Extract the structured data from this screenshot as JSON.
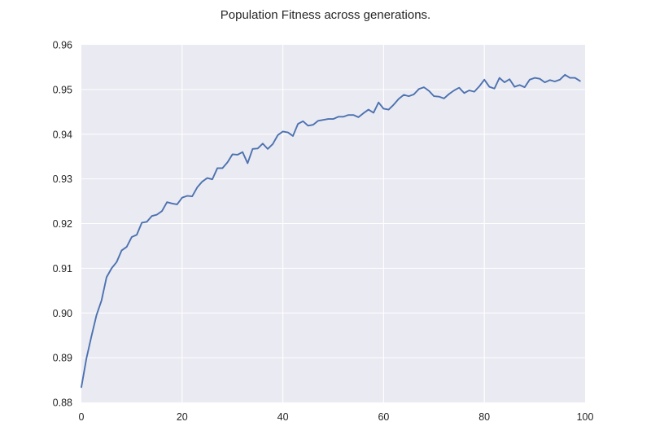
{
  "chart_data": {
    "type": "line",
    "title": "Population Fitness across generations.",
    "xlabel": "",
    "ylabel": "",
    "xlim": [
      0,
      100
    ],
    "ylim": [
      0.88,
      0.96
    ],
    "xticks": [
      0,
      20,
      40,
      60,
      80,
      100
    ],
    "yticks": [
      0.88,
      0.89,
      0.9,
      0.91,
      0.92,
      0.93,
      0.94,
      0.95,
      0.96
    ],
    "xtick_labels": [
      "0",
      "20",
      "40",
      "60",
      "80",
      "100"
    ],
    "ytick_labels": [
      "0.88",
      "0.89",
      "0.90",
      "0.91",
      "0.92",
      "0.93",
      "0.94",
      "0.95",
      "0.96"
    ],
    "grid": true,
    "legend": "none",
    "colors": {
      "background": "#eaeaf2",
      "grid": "#ffffff",
      "series": "#4c72b0",
      "text": "#262626"
    },
    "series": [
      {
        "color": "#4c72b0",
        "x": [
          0,
          1,
          2,
          3,
          4,
          5,
          6,
          7,
          8,
          9,
          10,
          11,
          12,
          13,
          14,
          15,
          16,
          17,
          18,
          19,
          20,
          21,
          22,
          23,
          24,
          25,
          26,
          27,
          28,
          29,
          30,
          31,
          32,
          33,
          34,
          35,
          36,
          37,
          38,
          39,
          40,
          41,
          42,
          43,
          44,
          45,
          46,
          47,
          48,
          49,
          50,
          51,
          52,
          53,
          54,
          55,
          56,
          57,
          58,
          59,
          60,
          61,
          62,
          63,
          64,
          65,
          66,
          67,
          68,
          69,
          70,
          71,
          72,
          73,
          74,
          75,
          76,
          77,
          78,
          79,
          80,
          81,
          82,
          83,
          84,
          85,
          86,
          87,
          88,
          89,
          90,
          91,
          92,
          93,
          94,
          95,
          96,
          97,
          98,
          99
        ],
        "values": [
          0.8834,
          0.8898,
          0.8948,
          0.8995,
          0.9028,
          0.908,
          0.91,
          0.9114,
          0.914,
          0.9148,
          0.917,
          0.9175,
          0.9202,
          0.9204,
          0.9217,
          0.922,
          0.9228,
          0.9248,
          0.9245,
          0.9243,
          0.9258,
          0.9262,
          0.9261,
          0.9281,
          0.9294,
          0.9302,
          0.9299,
          0.9324,
          0.9324,
          0.9337,
          0.9355,
          0.9354,
          0.936,
          0.9335,
          0.9367,
          0.9368,
          0.9379,
          0.9367,
          0.9378,
          0.9398,
          0.9406,
          0.9404,
          0.9396,
          0.9423,
          0.9429,
          0.9419,
          0.9421,
          0.943,
          0.9432,
          0.9434,
          0.9434,
          0.9439,
          0.9439,
          0.9443,
          0.9443,
          0.9438,
          0.9447,
          0.9455,
          0.9448,
          0.9471,
          0.9457,
          0.9455,
          0.9466,
          0.9479,
          0.9488,
          0.9485,
          0.9489,
          0.9501,
          0.9505,
          0.9497,
          0.9485,
          0.9484,
          0.948,
          0.949,
          0.9498,
          0.9504,
          0.9492,
          0.9498,
          0.9495,
          0.9507,
          0.9522,
          0.9506,
          0.9502,
          0.9526,
          0.9516,
          0.9523,
          0.9506,
          0.951,
          0.9505,
          0.9522,
          0.9526,
          0.9524,
          0.9516,
          0.9521,
          0.9518,
          0.9522,
          0.9533,
          0.9526,
          0.9526,
          0.9519
        ]
      }
    ]
  }
}
